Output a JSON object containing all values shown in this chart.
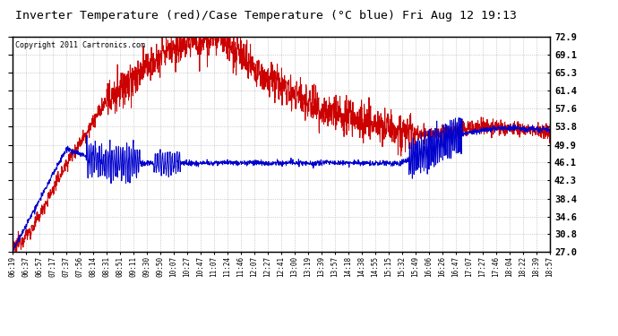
{
  "title": "Inverter Temperature (red)/Case Temperature (°C blue) Fri Aug 12 19:13",
  "copyright_text": "Copyright 2011 Cartronics.com",
  "ylabel_right_ticks": [
    27.0,
    30.8,
    34.6,
    38.4,
    42.3,
    46.1,
    49.9,
    53.8,
    57.6,
    61.4,
    65.3,
    69.1,
    72.9
  ],
  "ymin": 27.0,
  "ymax": 72.9,
  "background_color": "#ffffff",
  "plot_bg_color": "#ffffff",
  "grid_color": "#aaaaaa",
  "red_color": "#cc0000",
  "blue_color": "#0000cc",
  "x_labels": [
    "06:19",
    "06:37",
    "06:57",
    "07:17",
    "07:37",
    "07:56",
    "08:14",
    "08:31",
    "08:51",
    "09:11",
    "09:30",
    "09:50",
    "10:07",
    "10:27",
    "10:47",
    "11:07",
    "11:24",
    "11:46",
    "12:07",
    "12:27",
    "12:41",
    "13:00",
    "13:19",
    "13:39",
    "13:57",
    "14:18",
    "14:38",
    "14:55",
    "15:15",
    "15:32",
    "15:49",
    "16:06",
    "16:26",
    "16:47",
    "17:07",
    "17:27",
    "17:46",
    "18:04",
    "18:22",
    "18:39",
    "18:57"
  ],
  "figsize": [
    6.9,
    3.75
  ],
  "dpi": 100
}
